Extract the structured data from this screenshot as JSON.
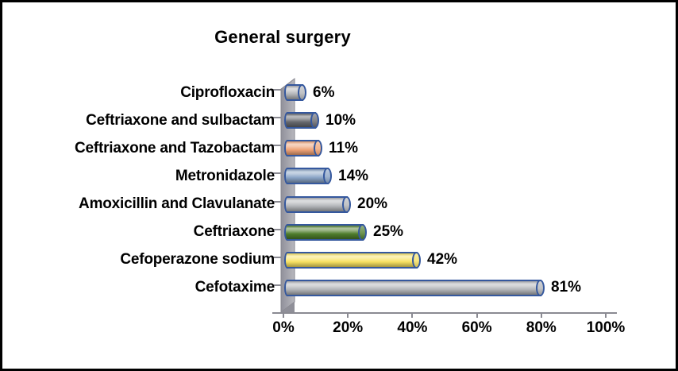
{
  "title": "General surgery",
  "chart_data": {
    "type": "bar",
    "orientation": "horizontal",
    "style": "3d-cylinder",
    "title": "General surgery",
    "categories": [
      "Ciprofloxacin",
      "Ceftriaxone and sulbactam",
      "Ceftriaxone and Tazobactam",
      "Metronidazole",
      "Amoxicillin and Clavulanate",
      "Ceftriaxone",
      "Cefoperazone sodium",
      "Cefotaxime"
    ],
    "values": [
      6,
      10,
      11,
      14,
      20,
      25,
      42,
      81
    ],
    "value_labels": [
      "6%",
      "10%",
      "11%",
      "14%",
      "20%",
      "25%",
      "42%",
      "81%"
    ],
    "bar_colors": [
      "#b2b4b8",
      "#66686e",
      "#efa377",
      "#8aa4c6",
      "#b2b4b8",
      "#4e7c2b",
      "#f7e163",
      "#b2b4b8"
    ],
    "outline_color": "#35589e",
    "x_ticks": [
      "0%",
      "20%",
      "40%",
      "60%",
      "80%",
      "100%"
    ],
    "xlim": [
      0,
      100
    ],
    "grid": false,
    "legend": false,
    "xlabel": "",
    "ylabel": "",
    "wall_color_light": "#b8b8be",
    "wall_color_dark": "#90909a",
    "axis_color": "#8a8a92",
    "text_color": "#000000",
    "background": "#ffffff",
    "frame_border_color": "#000000"
  }
}
